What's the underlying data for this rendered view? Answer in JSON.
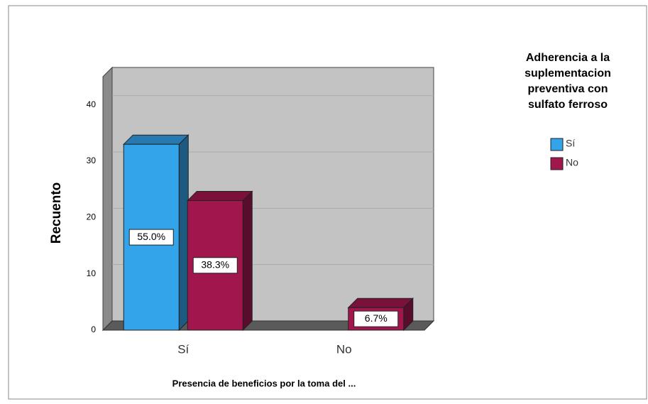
{
  "chart_data": {
    "type": "bar3d",
    "y_label": "Recuento",
    "x_label": "Presencia de beneficios por la toma del ...",
    "legend_title": "Adherencia a la suplementacion preventiva con sulfato ferroso",
    "categories": [
      "Sí",
      "No"
    ],
    "series": [
      {
        "name": "Sí",
        "color": "#33a3ea",
        "values": [
          33,
          null
        ],
        "value_labels": [
          "55.0%",
          null
        ]
      },
      {
        "name": "No",
        "color": "#a2164e",
        "values": [
          23,
          4
        ],
        "value_labels": [
          "38.3%",
          "6.7%"
        ]
      }
    ],
    "ylim": [
      0,
      45
    ],
    "yticks": [
      0,
      10,
      20,
      30,
      40
    ],
    "grid": true,
    "legend": "right"
  }
}
